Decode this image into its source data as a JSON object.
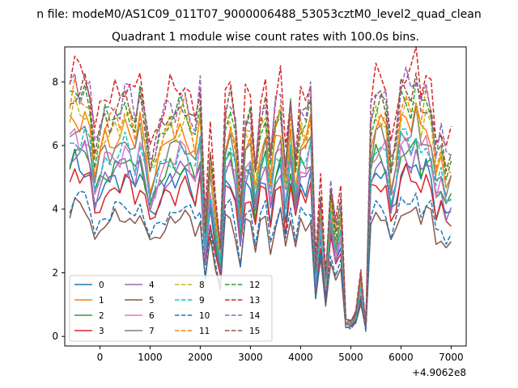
{
  "chart_data": {
    "type": "line",
    "suptitle": "n file: modeM0/AS1C09_011T07_9000006488_53053cztM0_level2_quad_clean",
    "title": "Quadrant 1 module wise count rates with 100.0s bins.",
    "xlabel": "",
    "ylabel": "",
    "x_offset_label": "+4.9062e8",
    "xlim": [
      -700,
      7300
    ],
    "ylim": [
      -0.3,
      9.1
    ],
    "x_ticks": [
      0,
      1000,
      2000,
      3000,
      4000,
      5000,
      6000,
      7000
    ],
    "x_tick_labels": [
      "0",
      "1000",
      "2000",
      "3000",
      "4000",
      "5000",
      "6000",
      "7000"
    ],
    "y_ticks": [
      0,
      2,
      4,
      6,
      8
    ],
    "y_tick_labels": [
      "0",
      "2",
      "4",
      "6",
      "8"
    ],
    "grid": false,
    "legend_position": "lower-left",
    "legend_columns": 4,
    "x": [
      -600,
      -500,
      -400,
      -300,
      -200,
      -100,
      0,
      100,
      200,
      300,
      400,
      500,
      600,
      700,
      800,
      900,
      1000,
      1100,
      1200,
      1300,
      1400,
      1500,
      1600,
      1700,
      1800,
      1900,
      2000,
      2100,
      2200,
      2300,
      2400,
      2500,
      2600,
      2700,
      2800,
      2900,
      3000,
      3100,
      3200,
      3300,
      3400,
      3500,
      3600,
      3700,
      3800,
      3900,
      4000,
      4100,
      4200,
      4300,
      4400,
      4500,
      4600,
      4700,
      4800,
      4900,
      5000,
      5100,
      5200,
      5300,
      5400,
      5500,
      5600,
      5700,
      5800,
      5900,
      6000,
      6100,
      6200,
      6300,
      6400,
      6500,
      6600,
      6700,
      6800,
      6900,
      7000
    ],
    "shape": [
      1.0,
      1.07,
      1.03,
      1.05,
      0.99,
      0.78,
      0.86,
      0.93,
      0.92,
      0.97,
      0.95,
      1.0,
      0.97,
      0.9,
      1.01,
      0.9,
      0.74,
      0.79,
      0.86,
      0.9,
      0.95,
      0.92,
      0.98,
      0.99,
      0.93,
      0.86,
      1.0,
      0.46,
      0.78,
      0.56,
      0.38,
      0.95,
      0.98,
      0.86,
      0.57,
      0.91,
      0.93,
      0.7,
      0.92,
      0.97,
      0.72,
      0.92,
      0.99,
      0.71,
      0.97,
      0.73,
      0.94,
      0.9,
      0.99,
      0.3,
      0.6,
      0.25,
      0.62,
      0.45,
      0.56,
      0.07,
      0.06,
      0.1,
      0.26,
      0.04,
      0.92,
      1.0,
      0.99,
      0.97,
      0.74,
      0.84,
      1.03,
      1.04,
      1.0,
      1.07,
      0.95,
      1.02,
      0.97,
      0.77,
      0.83,
      0.72,
      0.76
    ],
    "series": [
      {
        "name": "0",
        "color": "#1f77b4",
        "dash": "solid",
        "peak": 5.15
      },
      {
        "name": "1",
        "color": "#ff7f0e",
        "dash": "solid",
        "peak": 6.6
      },
      {
        "name": "2",
        "color": "#2ca02c",
        "dash": "solid",
        "peak": 5.6
      },
      {
        "name": "3",
        "color": "#d62728",
        "dash": "solid",
        "peak": 4.85
      },
      {
        "name": "4",
        "color": "#9467bd",
        "dash": "solid",
        "peak": 5.45
      },
      {
        "name": "5",
        "color": "#8c564b",
        "dash": "solid",
        "peak": 3.85
      },
      {
        "name": "6",
        "color": "#e377c2",
        "dash": "solid",
        "peak": 5.9
      },
      {
        "name": "7",
        "color": "#7f7f7f",
        "dash": "solid",
        "peak": 6.25
      },
      {
        "name": "8",
        "color": "#bcbd22",
        "dash": "dashed",
        "peak": 6.9
      },
      {
        "name": "9",
        "color": "#17becf",
        "dash": "dashed",
        "peak": 5.95
      },
      {
        "name": "10",
        "color": "#1f77b4",
        "dash": "dashed",
        "peak": 4.15
      },
      {
        "name": "11",
        "color": "#ff7f0e",
        "dash": "dashed",
        "peak": 7.1
      },
      {
        "name": "12",
        "color": "#2ca02c",
        "dash": "dashed",
        "peak": 7.3
      },
      {
        "name": "13",
        "color": "#d62728",
        "dash": "dashed",
        "peak": 8.1
      },
      {
        "name": "14",
        "color": "#9467bd",
        "dash": "dashed",
        "peak": 7.65
      },
      {
        "name": "15",
        "color": "#8c564b",
        "dash": "dashed",
        "peak": 7.45
      }
    ]
  }
}
